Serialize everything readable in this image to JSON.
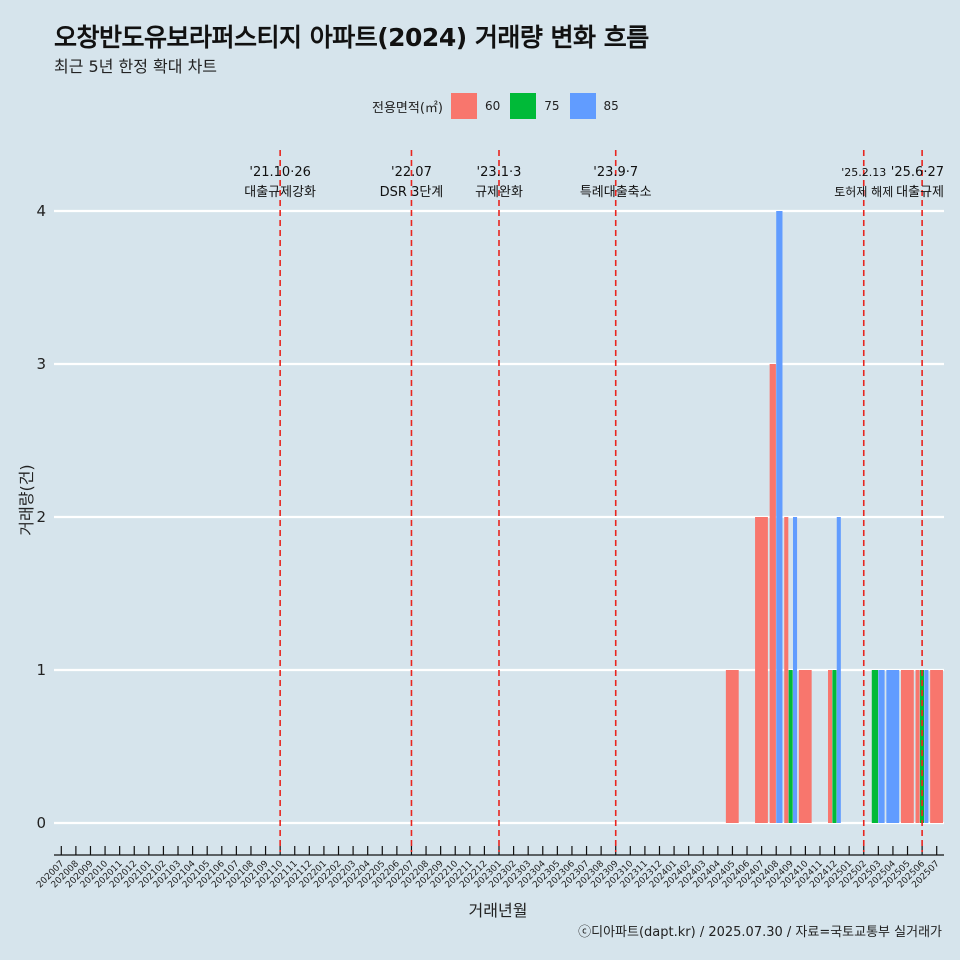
{
  "header": {
    "title": "오창반도유보라퍼스티지 아파트(2024) 거래량 변화 흐름",
    "subtitle": "최근 5년 한정 확대 차트"
  },
  "legend": {
    "title": "전용면적(㎡)",
    "items": [
      {
        "label": "60",
        "color": "#F8766D"
      },
      {
        "label": "75",
        "color": "#00BA38"
      },
      {
        "label": "85",
        "color": "#619CFF"
      }
    ]
  },
  "axes": {
    "xlabel": "거래년월",
    "ylabel": "거래량(건)"
  },
  "caption": "ⓒ디아파트(dapt.kr) / 2025.07.30 / 자료=국토교통부 실거래가",
  "chart_data": {
    "type": "bar",
    "bar_mode": "dodge",
    "ylim": [
      0,
      4
    ],
    "yticks": [
      0,
      1,
      2,
      3,
      4
    ],
    "grid": true,
    "legend_position": "top",
    "categories": [
      "202007",
      "202008",
      "202009",
      "202010",
      "202011",
      "202012",
      "202101",
      "202102",
      "202103",
      "202104",
      "202105",
      "202106",
      "202107",
      "202108",
      "202109",
      "202110",
      "202111",
      "202112",
      "202201",
      "202202",
      "202203",
      "202204",
      "202205",
      "202206",
      "202207",
      "202208",
      "202209",
      "202210",
      "202211",
      "202212",
      "202301",
      "202302",
      "202303",
      "202304",
      "202305",
      "202306",
      "202307",
      "202308",
      "202309",
      "202310",
      "202311",
      "202312",
      "202401",
      "202402",
      "202403",
      "202404",
      "202405",
      "202406",
      "202407",
      "202408",
      "202409",
      "202410",
      "202411",
      "202412",
      "202501",
      "202502",
      "202503",
      "202504",
      "202505",
      "202506",
      "202507"
    ],
    "series": [
      {
        "name": "60",
        "color": "#F8766D",
        "points": [
          {
            "x": "202405",
            "y": 1
          },
          {
            "x": "202407",
            "y": 2
          },
          {
            "x": "202408",
            "y": 3
          },
          {
            "x": "202409",
            "y": 2
          },
          {
            "x": "202410",
            "y": 1
          },
          {
            "x": "202412",
            "y": 1
          },
          {
            "x": "202505",
            "y": 1
          },
          {
            "x": "202506",
            "y": 1
          },
          {
            "x": "202507",
            "y": 1
          }
        ]
      },
      {
        "name": "75",
        "color": "#00BA38",
        "points": [
          {
            "x": "202409",
            "y": 1
          },
          {
            "x": "202412",
            "y": 1
          },
          {
            "x": "202503",
            "y": 1
          },
          {
            "x": "202506",
            "y": 1
          }
        ]
      },
      {
        "name": "85",
        "color": "#619CFF",
        "points": [
          {
            "x": "202408",
            "y": 4
          },
          {
            "x": "202409",
            "y": 2
          },
          {
            "x": "202412",
            "y": 2
          },
          {
            "x": "202503",
            "y": 1
          },
          {
            "x": "202504",
            "y": 1
          },
          {
            "x": "202506",
            "y": 1
          }
        ]
      }
    ],
    "events": [
      {
        "x": "202110",
        "date": "'21.10·26",
        "label": "대출규제강화"
      },
      {
        "x": "202207",
        "date": "'22.07",
        "label": "DSR 3단계"
      },
      {
        "x": "202301",
        "date": "'23.1·3",
        "label": "규제완화"
      },
      {
        "x": "202309",
        "date": "'23.9·7",
        "label": "특례대출축소"
      },
      {
        "x": "202502",
        "date": "'25.2.13",
        "label": "토허제 해제"
      },
      {
        "x": "202506",
        "date": "'25.6·27",
        "label": "대출규제"
      }
    ]
  }
}
